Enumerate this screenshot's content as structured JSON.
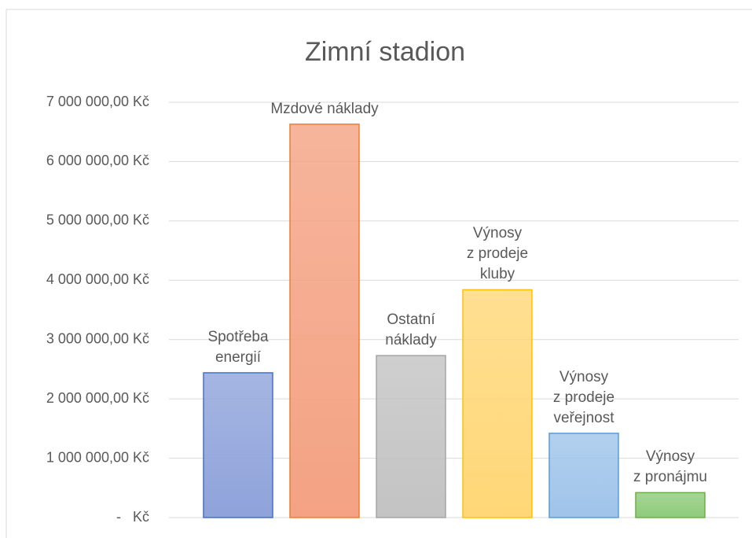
{
  "chart_data": {
    "type": "bar",
    "title": "Zimní stadion",
    "categories": [
      "Spotřeba\nenergií",
      "Mzdové náklady",
      "Ostatní\nnáklady",
      "Výnosy\nz prodeje\nkluby",
      "Výnosy\nz prodeje\nveřejnost",
      "Výnosy\nz pronájmu"
    ],
    "values": [
      2440000,
      6630000,
      2730000,
      3840000,
      1420000,
      420000
    ],
    "colors": [
      "#8fa3db",
      "#f4a283",
      "#c3c3c3",
      "#ffd777",
      "#9fc4ea",
      "#8fcb7c"
    ],
    "edge_colors": [
      "#4472c4",
      "#ed7d31",
      "#a5a5a5",
      "#ffc000",
      "#5b9bd5",
      "#70ad47"
    ],
    "ylim": [
      0,
      7000000
    ],
    "yticks": [
      {
        "value": 0,
        "label": "-   Kč"
      },
      {
        "value": 1000000,
        "label": "1 000 000,00 Kč"
      },
      {
        "value": 2000000,
        "label": "2 000 000,00 Kč"
      },
      {
        "value": 3000000,
        "label": "3 000 000,00 Kč"
      },
      {
        "value": 4000000,
        "label": "4 000 000,00 Kč"
      },
      {
        "value": 5000000,
        "label": "5 000 000,00 Kč"
      },
      {
        "value": 6000000,
        "label": "6 000 000,00 Kč"
      },
      {
        "value": 7000000,
        "label": "7 000 000,00 Kč"
      }
    ],
    "grid": true
  }
}
